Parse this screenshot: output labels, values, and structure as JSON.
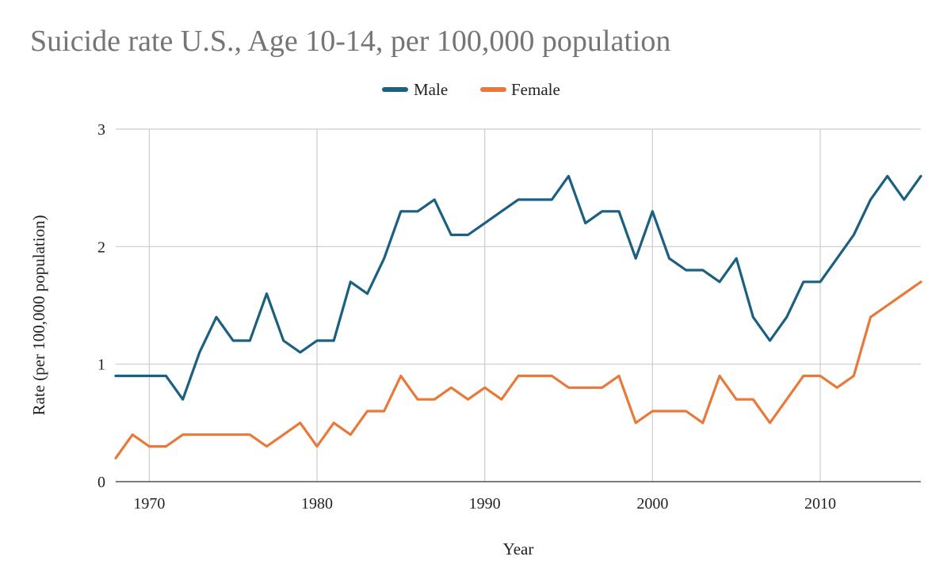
{
  "chart_data": {
    "type": "line",
    "title": "Suicide rate U.S., Age 10-14, per 100,000 population",
    "xlabel": "Year",
    "ylabel": "Rate (per 100,000 population)",
    "xlim": [
      1968,
      2016
    ],
    "ylim": [
      0,
      3
    ],
    "x_ticks": [
      1970,
      1980,
      1990,
      2000,
      2010
    ],
    "y_ticks": [
      0,
      1,
      2,
      3
    ],
    "grid": true,
    "legend_position": "top",
    "x": [
      1968,
      1969,
      1970,
      1971,
      1972,
      1973,
      1974,
      1975,
      1976,
      1977,
      1978,
      1979,
      1980,
      1981,
      1982,
      1983,
      1984,
      1985,
      1986,
      1987,
      1988,
      1989,
      1990,
      1991,
      1992,
      1993,
      1994,
      1995,
      1996,
      1997,
      1998,
      1999,
      2000,
      2001,
      2002,
      2003,
      2004,
      2005,
      2006,
      2007,
      2008,
      2009,
      2010,
      2011,
      2012,
      2013,
      2014,
      2015,
      2016
    ],
    "series": [
      {
        "name": "Male",
        "color": "#1b5f81",
        "values": [
          0.9,
          0.9,
          0.9,
          0.9,
          0.7,
          1.1,
          1.4,
          1.2,
          1.2,
          1.6,
          1.2,
          1.1,
          1.2,
          1.2,
          1.7,
          1.6,
          1.9,
          2.3,
          2.3,
          2.4,
          2.1,
          2.1,
          2.2,
          2.3,
          2.4,
          2.4,
          2.4,
          2.6,
          2.2,
          2.3,
          2.3,
          1.9,
          2.3,
          1.9,
          1.8,
          1.8,
          1.7,
          1.9,
          1.4,
          1.2,
          1.4,
          1.7,
          1.7,
          1.9,
          2.1,
          2.4,
          2.6,
          2.4,
          2.6
        ]
      },
      {
        "name": "Female",
        "color": "#e8793a",
        "values": [
          0.2,
          0.4,
          0.3,
          0.3,
          0.4,
          0.4,
          0.4,
          0.4,
          0.4,
          0.3,
          0.4,
          0.5,
          0.3,
          0.5,
          0.4,
          0.6,
          0.6,
          0.9,
          0.7,
          0.7,
          0.8,
          0.7,
          0.8,
          0.7,
          0.9,
          0.9,
          0.9,
          0.8,
          0.8,
          0.8,
          0.9,
          0.5,
          0.6,
          0.6,
          0.6,
          0.5,
          0.9,
          0.7,
          0.7,
          0.5,
          0.7,
          0.9,
          0.9,
          0.8,
          0.9,
          1.4,
          1.5,
          1.6,
          1.7
        ]
      }
    ]
  }
}
